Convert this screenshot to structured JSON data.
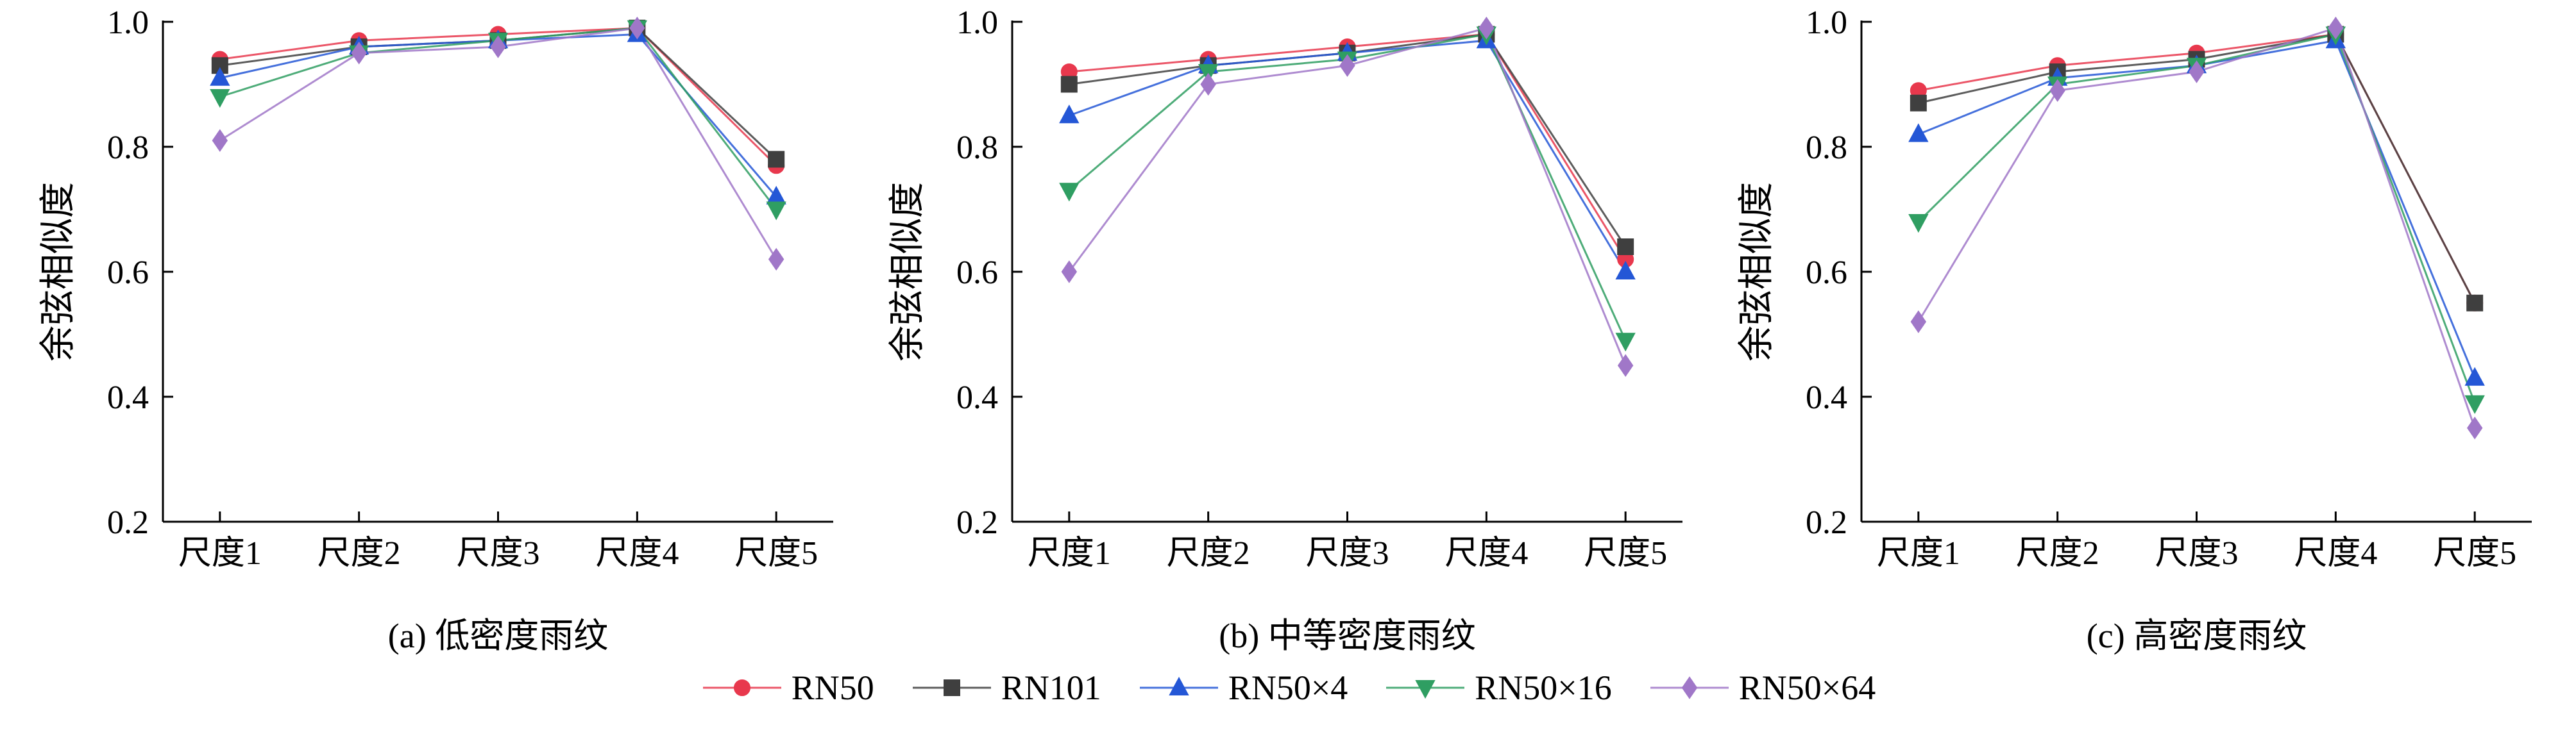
{
  "legend": {
    "entries": [
      {
        "label": "RN50",
        "color": "#e8384d",
        "marker": "circle"
      },
      {
        "label": "RN101",
        "color": "#3f3f3f",
        "marker": "square"
      },
      {
        "label": "RN50×4",
        "color": "#2457d6",
        "marker": "triangle-up"
      },
      {
        "label": "RN50×16",
        "color": "#2f9e62",
        "marker": "triangle-down"
      },
      {
        "label": "RN50×64",
        "color": "#a077c8",
        "marker": "diamond"
      }
    ]
  },
  "axis": {
    "color": "#000000",
    "ylim": [
      0.2,
      1.0
    ],
    "yticks": [
      "0.2",
      "0.4",
      "0.6",
      "0.8",
      "1.0"
    ]
  },
  "chart_data": [
    {
      "type": "line",
      "title": "(a) 低密度雨纹",
      "ylabel": "余弦相似度",
      "categories": [
        "尺度1",
        "尺度2",
        "尺度3",
        "尺度4",
        "尺度5"
      ],
      "ylim": [
        0.2,
        1.0
      ],
      "yticks": [
        0.2,
        0.4,
        0.6,
        0.8,
        1.0
      ],
      "series": [
        {
          "name": "RN50",
          "values": [
            0.94,
            0.97,
            0.98,
            0.99,
            0.77
          ]
        },
        {
          "name": "RN101",
          "values": [
            0.93,
            0.96,
            0.97,
            0.99,
            0.78
          ]
        },
        {
          "name": "RN50×4",
          "values": [
            0.91,
            0.96,
            0.97,
            0.98,
            0.72
          ]
        },
        {
          "name": "RN50×16",
          "values": [
            0.88,
            0.95,
            0.97,
            0.99,
            0.7
          ]
        },
        {
          "name": "RN50×64",
          "values": [
            0.81,
            0.95,
            0.96,
            0.99,
            0.62
          ]
        }
      ]
    },
    {
      "type": "line",
      "title": "(b) 中等密度雨纹",
      "ylabel": "余弦相似度",
      "categories": [
        "尺度1",
        "尺度2",
        "尺度3",
        "尺度4",
        "尺度5"
      ],
      "ylim": [
        0.2,
        1.0
      ],
      "yticks": [
        0.2,
        0.4,
        0.6,
        0.8,
        1.0
      ],
      "series": [
        {
          "name": "RN50",
          "values": [
            0.92,
            0.94,
            0.96,
            0.98,
            0.62
          ]
        },
        {
          "name": "RN101",
          "values": [
            0.9,
            0.93,
            0.95,
            0.98,
            0.64
          ]
        },
        {
          "name": "RN50×4",
          "values": [
            0.85,
            0.93,
            0.95,
            0.97,
            0.6
          ]
        },
        {
          "name": "RN50×16",
          "values": [
            0.73,
            0.92,
            0.94,
            0.98,
            0.49
          ]
        },
        {
          "name": "RN50×64",
          "values": [
            0.6,
            0.9,
            0.93,
            0.99,
            0.45
          ]
        }
      ]
    },
    {
      "type": "line",
      "title": "(c) 高密度雨纹",
      "ylabel": "余弦相似度",
      "categories": [
        "尺度1",
        "尺度2",
        "尺度3",
        "尺度4",
        "尺度5"
      ],
      "ylim": [
        0.2,
        1.0
      ],
      "yticks": [
        0.2,
        0.4,
        0.6,
        0.8,
        1.0
      ],
      "series": [
        {
          "name": "RN50",
          "values": [
            0.89,
            0.93,
            0.95,
            0.98,
            0.55
          ]
        },
        {
          "name": "RN101",
          "values": [
            0.87,
            0.92,
            0.94,
            0.98,
            0.55
          ]
        },
        {
          "name": "RN50×4",
          "values": [
            0.82,
            0.91,
            0.93,
            0.97,
            0.43
          ]
        },
        {
          "name": "RN50×16",
          "values": [
            0.68,
            0.9,
            0.93,
            0.98,
            0.39
          ]
        },
        {
          "name": "RN50×64",
          "values": [
            0.52,
            0.89,
            0.92,
            0.99,
            0.35
          ]
        }
      ]
    }
  ]
}
